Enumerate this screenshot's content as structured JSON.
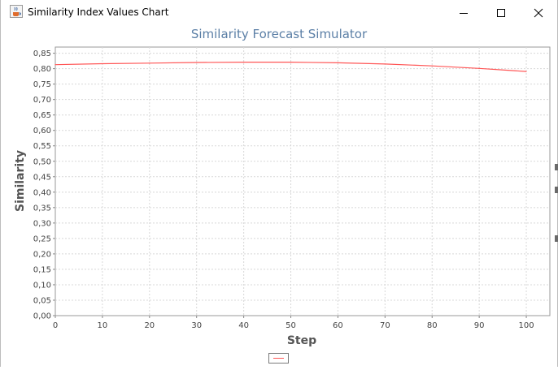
{
  "window": {
    "title": "Similarity Index Values Chart",
    "icon": "java-cup-icon",
    "controls": [
      "minimize-icon",
      "maximize-icon",
      "close-icon"
    ]
  },
  "chart_data": {
    "type": "line",
    "title": "Similarity Forecast Simulator",
    "xlabel": "Step",
    "ylabel": "Similarity",
    "xlim": [
      0,
      105
    ],
    "ylim": [
      0,
      0.87
    ],
    "x_ticks": [
      "0",
      "10",
      "20",
      "30",
      "40",
      "50",
      "60",
      "70",
      "80",
      "90",
      "100"
    ],
    "y_ticks": [
      "0,00",
      "0,05",
      "0,10",
      "0,15",
      "0,20",
      "0,25",
      "0,30",
      "0,35",
      "0,40",
      "0,45",
      "0,50",
      "0,55",
      "0,60",
      "0,65",
      "0,70",
      "0,75",
      "0,80",
      "0,85"
    ],
    "grid": true,
    "legend": "bottom-center",
    "series": [
      {
        "color": "#ff5555",
        "x": [
          0,
          10,
          20,
          30,
          40,
          50,
          60,
          70,
          80,
          90,
          100
        ],
        "y": [
          0.813,
          0.816,
          0.818,
          0.82,
          0.821,
          0.821,
          0.819,
          0.815,
          0.809,
          0.801,
          0.791
        ]
      }
    ]
  }
}
